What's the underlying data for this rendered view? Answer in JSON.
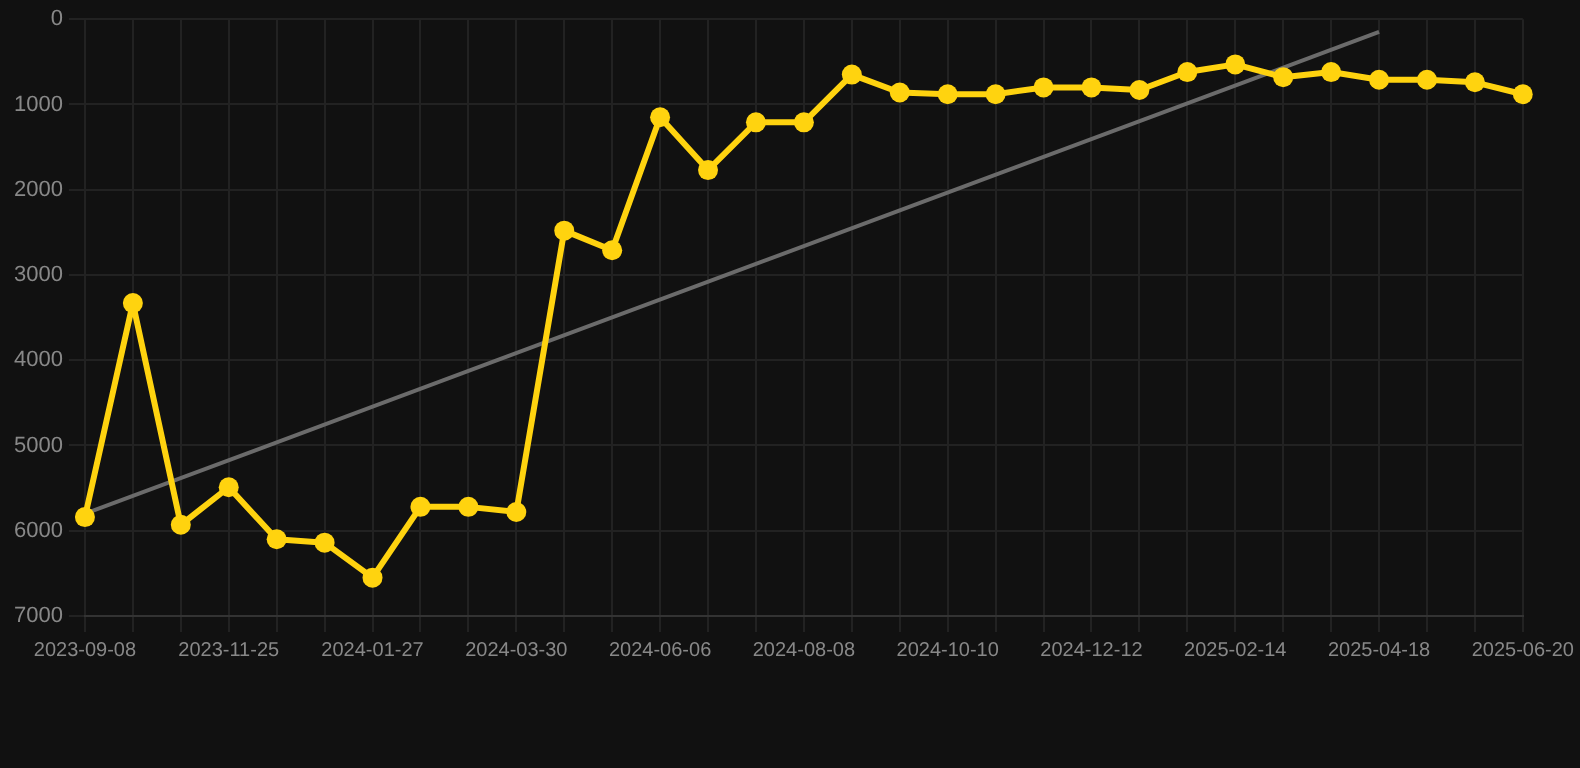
{
  "chart_data": {
    "type": "line",
    "categories": [
      "2023-09-08",
      null,
      null,
      "2023-11-25",
      null,
      null,
      "2024-01-27",
      null,
      null,
      "2024-03-30",
      null,
      null,
      "2024-06-06",
      null,
      null,
      "2024-08-08",
      null,
      null,
      "2024-10-10",
      null,
      null,
      "2024-12-12",
      null,
      null,
      "2025-02-14",
      null,
      null,
      "2025-04-18",
      null,
      null,
      "2025-06-20"
    ],
    "series": [
      {
        "color": "#ffd30f",
        "marker": "circle",
        "values": [
          5840,
          3330,
          5930,
          5490,
          6100,
          6140,
          6550,
          5720,
          5720,
          5780,
          2480,
          2710,
          1150,
          1770,
          1210,
          1210,
          650,
          860,
          880,
          880,
          800,
          800,
          830,
          620,
          530,
          680,
          620,
          710,
          710,
          740,
          880
        ]
      },
      {
        "type": "line",
        "color": "#6b6b6b",
        "marker": "none",
        "values": [
          5800,
          null,
          null,
          null,
          null,
          null,
          null,
          null,
          null,
          null,
          null,
          null,
          null,
          null,
          null,
          null,
          null,
          null,
          null,
          null,
          null,
          null,
          null,
          null,
          null,
          null,
          null,
          150,
          null,
          null,
          null
        ]
      }
    ],
    "ylim": [
      7000,
      0
    ],
    "yticks": [
      0,
      1000,
      2000,
      3000,
      4000,
      5000,
      6000,
      7000
    ],
    "grid": true,
    "legend": false
  }
}
